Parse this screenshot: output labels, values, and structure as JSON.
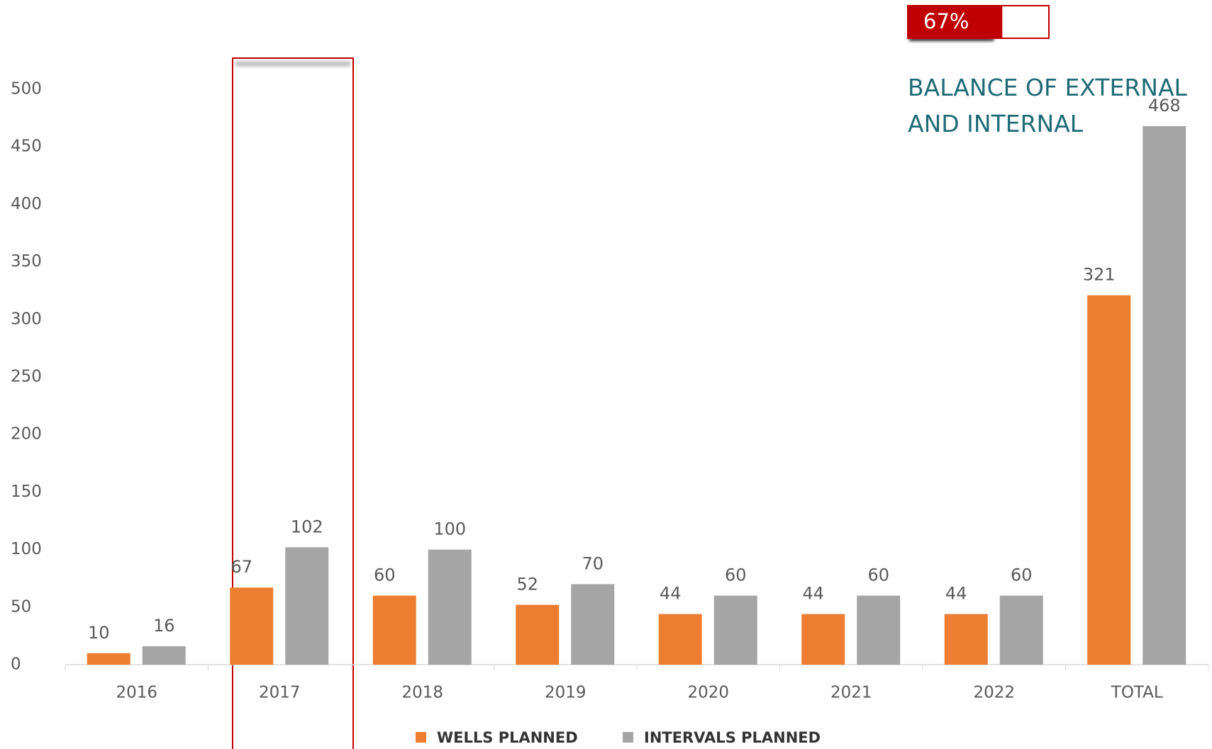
{
  "chart_data": {
    "type": "bar",
    "categories": [
      "2016",
      "2017",
      "2018",
      "2019",
      "2020",
      "2021",
      "2022",
      "TOTAL"
    ],
    "series": [
      {
        "name": "WELLS PLANNED",
        "color": "#ed7d31",
        "values": [
          10,
          67,
          60,
          52,
          44,
          44,
          44,
          321
        ]
      },
      {
        "name": "INTERVALS PLANNED",
        "color": "#a5a5a5",
        "values": [
          16,
          102,
          100,
          70,
          60,
          60,
          60,
          468
        ]
      }
    ],
    "ylim": [
      0,
      500
    ],
    "yticks": [
      0,
      50,
      100,
      150,
      200,
      250,
      300,
      350,
      400,
      450,
      500
    ],
    "grid": false,
    "annotation": [
      "BALANCE OF EXTERNAL",
      "AND INTERNAL"
    ],
    "progress": {
      "value": 67,
      "label": "67%"
    }
  }
}
